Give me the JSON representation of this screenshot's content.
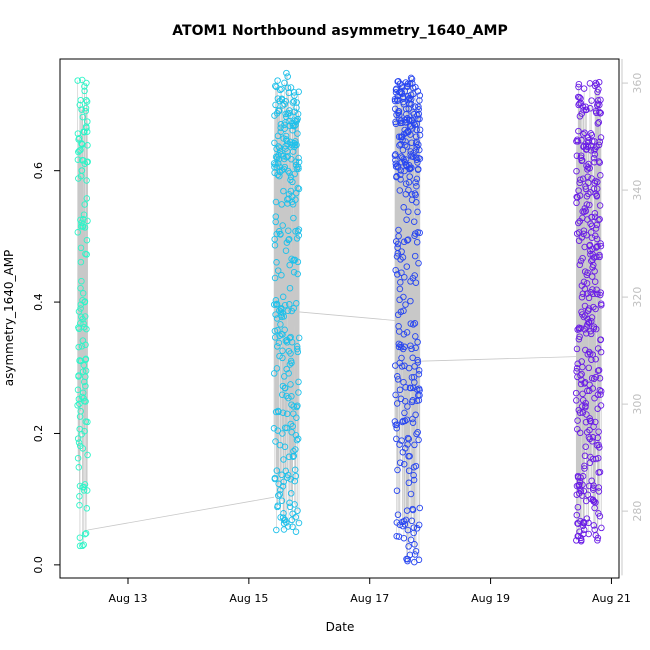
{
  "chart_data": {
    "type": "scatter",
    "title": "ATOM1 Northbound asymmetry_1640_AMP",
    "xlabel": "Date",
    "ylabel": "asymmetry_1640_AMP",
    "x_range": [
      "2023-08-11T21:00",
      "2023-08-21T03:00"
    ],
    "ylim": [
      -0.02,
      0.77
    ],
    "y_right_lim": [
      267.5,
      364.5
    ],
    "x_ticks": [
      "Aug 13",
      "Aug 15",
      "Aug 17",
      "Aug 19",
      "Aug 21"
    ],
    "y_ticks": [
      "0.0",
      "0.2",
      "0.4",
      "0.6"
    ],
    "y_right_ticks": [
      "280",
      "300",
      "320",
      "340",
      "360"
    ],
    "grid": false,
    "legend": "none",
    "marker": "open circle",
    "line_color": "#c8c8c8",
    "clusters": [
      {
        "start": "2023-08-12T04:00",
        "end": "2023-08-12T08:00",
        "n": 130,
        "color": "#2ef5c8",
        "y_range": [
          0.025,
          0.74
        ],
        "line_start": 0.33,
        "line_end": 0.053
      },
      {
        "start": "2023-08-15T10:00",
        "end": "2023-08-15T20:00",
        "n": 300,
        "color": "#1ec0ea",
        "y_range": [
          0.05,
          0.75
        ],
        "line_start": 0.103,
        "line_end": 0.385
      },
      {
        "start": "2023-08-17T10:00",
        "end": "2023-08-17T20:00",
        "n": 330,
        "color": "#2846f0",
        "y_range": [
          0.003,
          0.755
        ],
        "line_start": 0.372,
        "line_end": 0.31
      },
      {
        "start": "2023-08-20T10:00",
        "end": "2023-08-20T20:00",
        "n": 360,
        "color": "#6a1de6",
        "y_range": [
          0.035,
          0.735
        ],
        "line_start": 0.317,
        "line_end": 0.3
      }
    ]
  }
}
